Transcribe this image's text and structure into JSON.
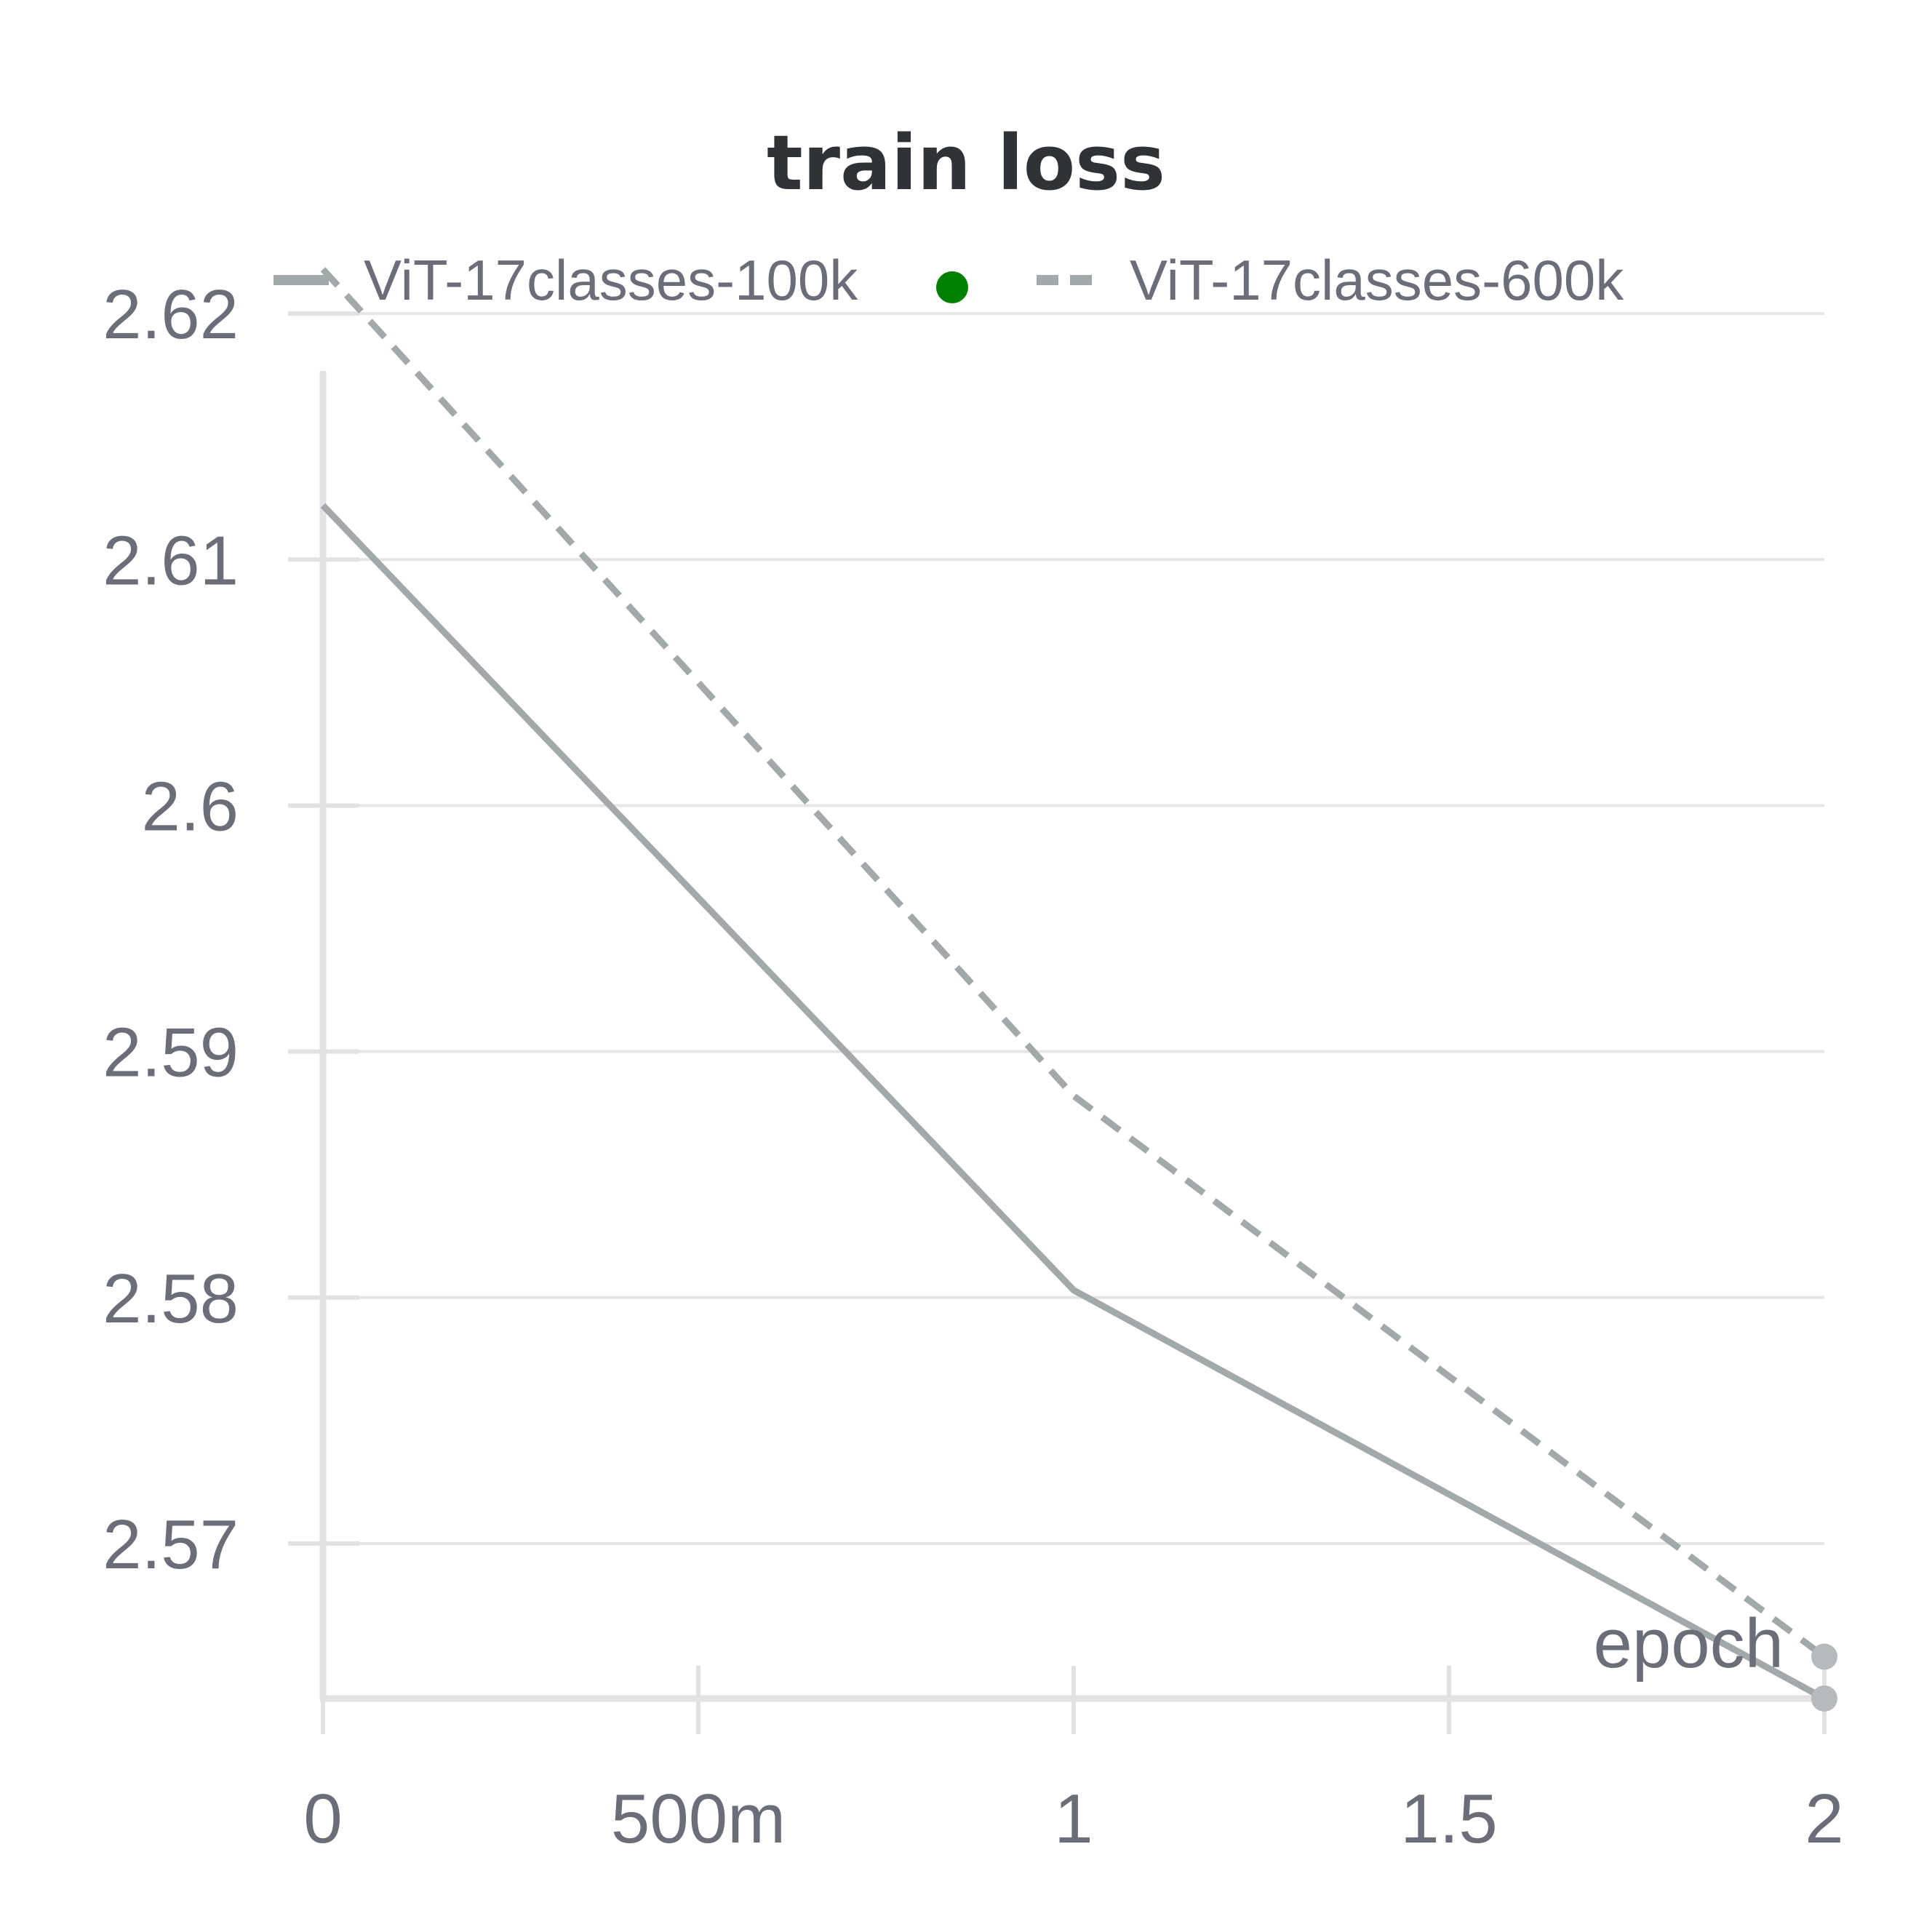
{
  "chart_data": {
    "type": "line",
    "title": "train loss",
    "xlabel": "epoch",
    "ylabel": "",
    "xlim": [
      0,
      2
    ],
    "ylim": [
      2.5637,
      2.6237
    ],
    "x_ticks": [
      {
        "value": 0,
        "label": "0"
      },
      {
        "value": 0.5,
        "label": "500m"
      },
      {
        "value": 1,
        "label": "1"
      },
      {
        "value": 1.5,
        "label": "1.5"
      },
      {
        "value": 2,
        "label": "2"
      }
    ],
    "y_ticks": [
      {
        "value": 2.57,
        "label": "2.57"
      },
      {
        "value": 2.58,
        "label": "2.58"
      },
      {
        "value": 2.59,
        "label": "2.59"
      },
      {
        "value": 2.6,
        "label": "2.6"
      },
      {
        "value": 2.61,
        "label": "2.61"
      },
      {
        "value": 2.62,
        "label": "2.62"
      }
    ],
    "grid": "horizontal",
    "legend_position": "top",
    "series": [
      {
        "name": "ViT-17classes-100k",
        "style": "solid",
        "color": "#a2a9ab",
        "marker_color": "#008000",
        "x": [
          0,
          1,
          2
        ],
        "y": [
          2.6122,
          2.5803,
          2.5637
        ]
      },
      {
        "name": "ViT-17classes-600k",
        "style": "dashed",
        "color": "#a2a9ab",
        "x": [
          0,
          1,
          2
        ],
        "y": [
          2.6218,
          2.5882,
          2.5654
        ]
      }
    ]
  }
}
